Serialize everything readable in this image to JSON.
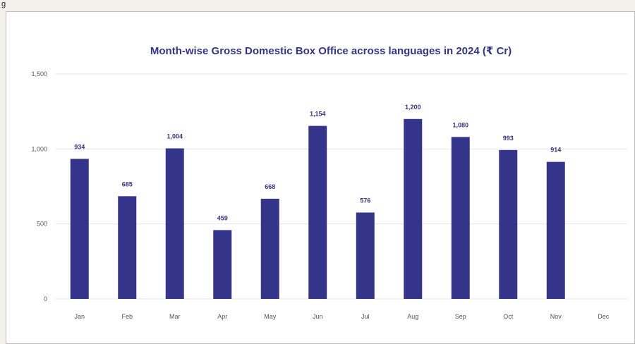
{
  "fragment_text": "g",
  "chart_data": {
    "type": "bar",
    "title": "Month-wise Gross Domestic Box Office across languages in 2024 (₹ Cr)",
    "categories": [
      "Jan",
      "Feb",
      "Mar",
      "Apr",
      "May",
      "Jun",
      "Jul",
      "Aug",
      "Sep",
      "Oct",
      "Nov",
      "Dec"
    ],
    "values": [
      934,
      685,
      1004,
      459,
      668,
      1154,
      576,
      1200,
      1080,
      993,
      914,
      null
    ],
    "value_labels": [
      "934",
      "685",
      "1,004",
      "459",
      "668",
      "1,154",
      "576",
      "1,200",
      "1,080",
      "993",
      "914",
      ""
    ],
    "y_ticks": [
      0,
      500,
      1000,
      1500
    ],
    "y_tick_labels": [
      "0",
      "500",
      "1,000",
      "1,500"
    ],
    "ylim": [
      0,
      1500
    ],
    "grid": true,
    "bar_color": "#34358a",
    "title_color": "#34358a"
  }
}
